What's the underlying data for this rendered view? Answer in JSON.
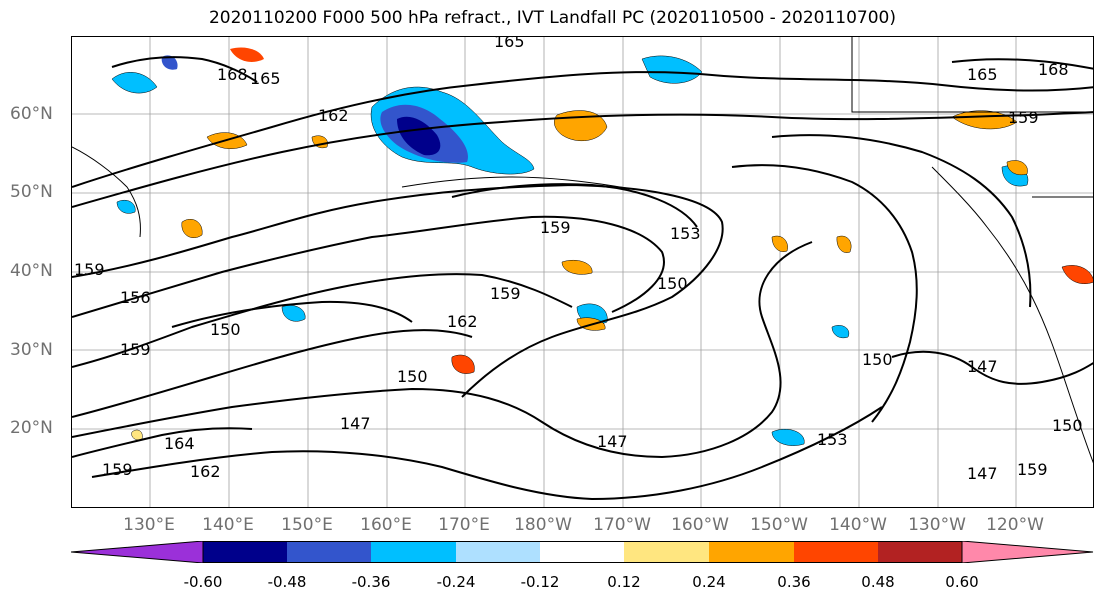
{
  "title": "2020110200 F000 500 hPa refract., IVT Landfall PC (2020110500 - 2020110700)",
  "lat_labels": [
    "60°N",
    "50°N",
    "40°N",
    "30°N",
    "20°N"
  ],
  "lon_labels": [
    "130°E",
    "140°E",
    "150°E",
    "160°E",
    "170°E",
    "180°W",
    "170°W",
    "160°W",
    "150°W",
    "140°W",
    "130°W",
    "120°W"
  ],
  "colorbar": {
    "ticks": [
      "-0.60",
      "-0.48",
      "-0.36",
      "-0.24",
      "-0.12",
      "0.12",
      "0.24",
      "0.36",
      "0.48",
      "0.60"
    ],
    "colors": [
      "#9b30d9",
      "#00008b",
      "#3355cc",
      "#00bfff",
      "#aee0ff",
      "#ffffff",
      "#ffe680",
      "#ffa500",
      "#ff4500",
      "#b22222",
      "#ff88aa"
    ]
  },
  "contour_labels": [
    "165",
    "168",
    "165",
    "162",
    "165",
    "168",
    "159",
    "159",
    "153",
    "150",
    "159",
    "159",
    "156",
    "150",
    "159",
    "162",
    "150",
    "147",
    "147",
    "150",
    "147",
    "150",
    "164",
    "162",
    "159",
    "147",
    "153",
    "159"
  ],
  "shading": {
    "negative_colors": [
      "#00bfff",
      "#3355cc",
      "#00008b"
    ],
    "positive_colors": [
      "#ffe680",
      "#ffa500",
      "#ff4500"
    ]
  }
}
